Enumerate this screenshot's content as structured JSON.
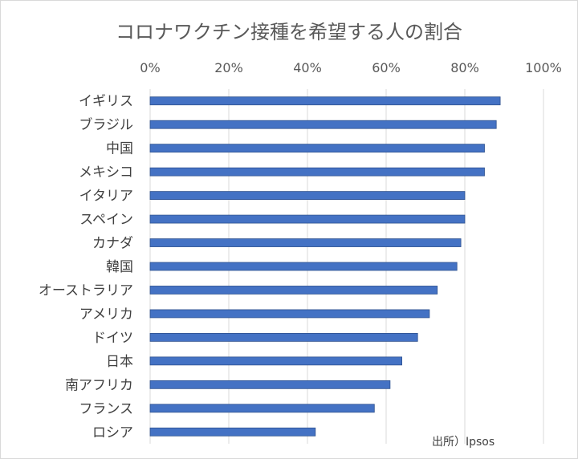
{
  "chart_data": {
    "type": "bar",
    "orientation": "horizontal",
    "title": "コロナワクチン接種を希望する人の割合",
    "categories": [
      "イギリス",
      "ブラジル",
      "中国",
      "メキシコ",
      "イタリア",
      "スペイン",
      "カナダ",
      "韓国",
      "オーストラリア",
      "アメリカ",
      "ドイツ",
      "日本",
      "南アフリカ",
      "フランス",
      "ロシア"
    ],
    "values": [
      89,
      88,
      85,
      85,
      80,
      80,
      79,
      78,
      73,
      71,
      68,
      64,
      61,
      57,
      42
    ],
    "unit": "%",
    "xlim": [
      0,
      100
    ],
    "x_ticks": [
      "0%",
      "20%",
      "40%",
      "60%",
      "80%",
      "100%"
    ],
    "x_axis_position": "top",
    "grid": true,
    "bar_color": "#4472c4",
    "annotation": "出所）Ipsos"
  }
}
